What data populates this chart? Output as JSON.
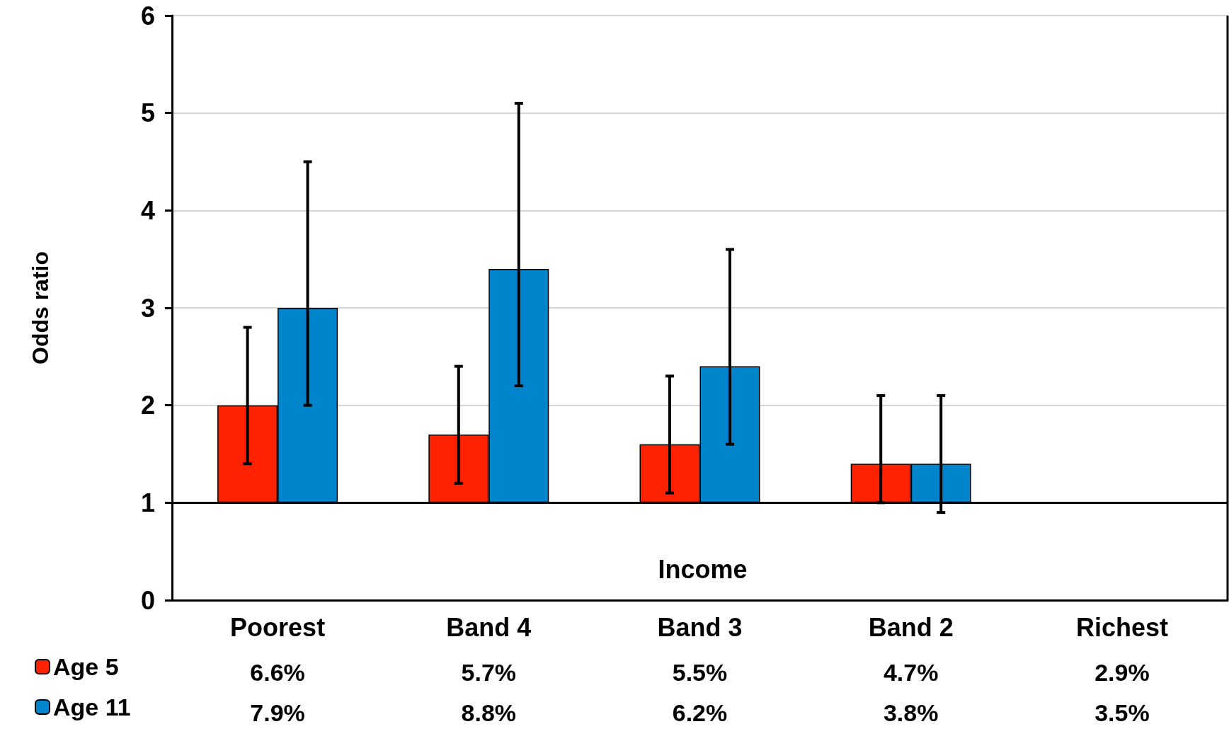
{
  "chart_data": {
    "type": "bar",
    "xlabel": "Income",
    "ylabel": "Odds ratio",
    "categories": [
      "Poorest",
      "Band 4",
      "Band 3",
      "Band 2",
      "Richest"
    ],
    "series": [
      {
        "name": "Age 5",
        "color": "#ff2200",
        "base": [
          1,
          1,
          1,
          1,
          null
        ],
        "values": [
          1.0,
          0.7,
          0.6,
          0.4,
          null
        ],
        "errors": [
          [
            1.4,
            2.8
          ],
          [
            1.2,
            2.4
          ],
          [
            1.1,
            2.3
          ],
          [
            1.0,
            2.1
          ],
          null
        ]
      },
      {
        "name": "Age 11",
        "color": "#0084cc",
        "base": [
          1,
          1,
          1,
          1,
          null
        ],
        "values": [
          2.0,
          2.4,
          1.4,
          0.4,
          null
        ],
        "errors": [
          [
            2.0,
            4.5
          ],
          [
            2.2,
            5.1
          ],
          [
            1.6,
            3.6
          ],
          [
            0.9,
            2.1
          ],
          null
        ]
      }
    ],
    "annotations": [
      "6.6%",
      "5.7%",
      "5.5%",
      "4.7%",
      "2.9%",
      "7.9%",
      "8.8%",
      "6.2%",
      "3.8%",
      "3.5%"
    ],
    "ylim": [
      0,
      6
    ],
    "yticks": [
      0,
      1,
      2,
      3,
      4,
      5,
      6
    ],
    "grid": "y",
    "legend": "bottom left",
    "ref_lines": [
      {
        "axis": "y",
        "value": 1,
        "color": "#000000"
      }
    ]
  }
}
